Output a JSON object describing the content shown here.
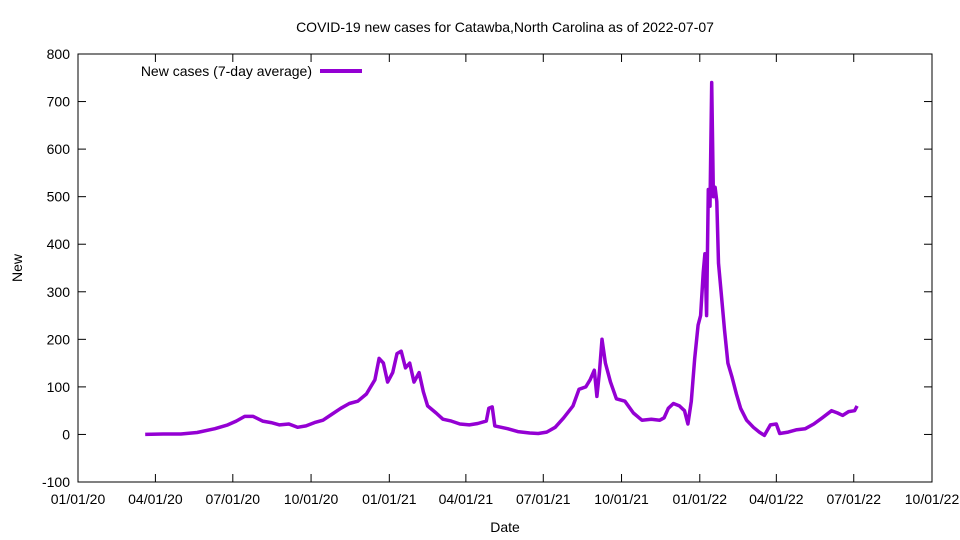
{
  "chart_data": {
    "type": "line",
    "title": "COVID-19 new cases for Catawba,North Carolina as of 2022-07-07",
    "xlabel": "Date",
    "ylabel": "New",
    "ylim": [
      -100,
      800
    ],
    "yticks": [
      -100,
      0,
      100,
      200,
      300,
      400,
      500,
      600,
      700,
      800
    ],
    "xlim": [
      "2020-01-01",
      "2022-10-01"
    ],
    "xticks": [
      {
        "date": "2020-01-01",
        "label": "01/01/20"
      },
      {
        "date": "2020-04-01",
        "label": "04/01/20"
      },
      {
        "date": "2020-07-01",
        "label": "07/01/20"
      },
      {
        "date": "2020-10-01",
        "label": "10/01/20"
      },
      {
        "date": "2021-01-01",
        "label": "01/01/21"
      },
      {
        "date": "2021-04-01",
        "label": "04/01/21"
      },
      {
        "date": "2021-07-01",
        "label": "07/01/21"
      },
      {
        "date": "2021-10-01",
        "label": "10/01/21"
      },
      {
        "date": "2022-01-01",
        "label": "01/01/22"
      },
      {
        "date": "2022-04-01",
        "label": "04/01/22"
      },
      {
        "date": "2022-07-01",
        "label": "07/01/22"
      },
      {
        "date": "2022-10-01",
        "label": "10/01/22"
      }
    ],
    "grid": false,
    "legend_position": "top-left",
    "series": [
      {
        "name": "New cases (7-day average)",
        "color": "#9400d3",
        "points": [
          [
            "2020-03-20",
            0
          ],
          [
            "2020-04-10",
            1
          ],
          [
            "2020-05-01",
            1
          ],
          [
            "2020-05-20",
            4
          ],
          [
            "2020-06-10",
            12
          ],
          [
            "2020-06-25",
            20
          ],
          [
            "2020-07-05",
            28
          ],
          [
            "2020-07-15",
            38
          ],
          [
            "2020-07-25",
            38
          ],
          [
            "2020-08-05",
            28
          ],
          [
            "2020-08-15",
            25
          ],
          [
            "2020-08-25",
            20
          ],
          [
            "2020-09-05",
            22
          ],
          [
            "2020-09-15",
            15
          ],
          [
            "2020-09-25",
            18
          ],
          [
            "2020-10-05",
            25
          ],
          [
            "2020-10-15",
            30
          ],
          [
            "2020-10-25",
            42
          ],
          [
            "2020-11-05",
            55
          ],
          [
            "2020-11-15",
            65
          ],
          [
            "2020-11-25",
            70
          ],
          [
            "2020-12-05",
            85
          ],
          [
            "2020-12-15",
            115
          ],
          [
            "2020-12-20",
            160
          ],
          [
            "2020-12-25",
            150
          ],
          [
            "2020-12-30",
            110
          ],
          [
            "2021-01-05",
            130
          ],
          [
            "2021-01-10",
            170
          ],
          [
            "2021-01-15",
            175
          ],
          [
            "2021-01-20",
            140
          ],
          [
            "2021-01-25",
            150
          ],
          [
            "2021-01-30",
            110
          ],
          [
            "2021-02-05",
            130
          ],
          [
            "2021-02-10",
            90
          ],
          [
            "2021-02-15",
            60
          ],
          [
            "2021-02-25",
            45
          ],
          [
            "2021-03-05",
            32
          ],
          [
            "2021-03-15",
            28
          ],
          [
            "2021-03-25",
            22
          ],
          [
            "2021-04-05",
            20
          ],
          [
            "2021-04-15",
            23
          ],
          [
            "2021-04-25",
            28
          ],
          [
            "2021-04-28",
            55
          ],
          [
            "2021-05-02",
            58
          ],
          [
            "2021-05-05",
            18
          ],
          [
            "2021-05-20",
            12
          ],
          [
            "2021-06-01",
            6
          ],
          [
            "2021-06-15",
            3
          ],
          [
            "2021-06-25",
            2
          ],
          [
            "2021-07-05",
            5
          ],
          [
            "2021-07-15",
            15
          ],
          [
            "2021-07-25",
            35
          ],
          [
            "2021-08-05",
            60
          ],
          [
            "2021-08-12",
            95
          ],
          [
            "2021-08-20",
            100
          ],
          [
            "2021-08-25",
            115
          ],
          [
            "2021-08-30",
            135
          ],
          [
            "2021-09-02",
            80
          ],
          [
            "2021-09-05",
            130
          ],
          [
            "2021-09-08",
            200
          ],
          [
            "2021-09-12",
            150
          ],
          [
            "2021-09-18",
            110
          ],
          [
            "2021-09-25",
            75
          ],
          [
            "2021-10-05",
            70
          ],
          [
            "2021-10-15",
            45
          ],
          [
            "2021-10-25",
            30
          ],
          [
            "2021-11-05",
            32
          ],
          [
            "2021-11-15",
            30
          ],
          [
            "2021-11-20",
            35
          ],
          [
            "2021-11-25",
            55
          ],
          [
            "2021-12-01",
            65
          ],
          [
            "2021-12-08",
            60
          ],
          [
            "2021-12-14",
            50
          ],
          [
            "2021-12-18",
            22
          ],
          [
            "2021-12-22",
            70
          ],
          [
            "2021-12-26",
            160
          ],
          [
            "2021-12-30",
            230
          ],
          [
            "2022-01-02",
            250
          ],
          [
            "2022-01-05",
            340
          ],
          [
            "2022-01-07",
            380
          ],
          [
            "2022-01-09",
            250
          ],
          [
            "2022-01-11",
            515
          ],
          [
            "2022-01-13",
            480
          ],
          [
            "2022-01-15",
            740
          ],
          [
            "2022-01-17",
            500
          ],
          [
            "2022-01-19",
            520
          ],
          [
            "2022-01-21",
            490
          ],
          [
            "2022-01-23",
            360
          ],
          [
            "2022-01-26",
            300
          ],
          [
            "2022-01-30",
            220
          ],
          [
            "2022-02-03",
            150
          ],
          [
            "2022-02-08",
            120
          ],
          [
            "2022-02-13",
            85
          ],
          [
            "2022-02-18",
            55
          ],
          [
            "2022-02-25",
            30
          ],
          [
            "2022-03-05",
            15
          ],
          [
            "2022-03-12",
            5
          ],
          [
            "2022-03-18",
            -2
          ],
          [
            "2022-03-25",
            20
          ],
          [
            "2022-04-01",
            22
          ],
          [
            "2022-04-05",
            2
          ],
          [
            "2022-04-15",
            5
          ],
          [
            "2022-04-25",
            10
          ],
          [
            "2022-05-05",
            12
          ],
          [
            "2022-05-15",
            22
          ],
          [
            "2022-05-25",
            35
          ],
          [
            "2022-06-05",
            50
          ],
          [
            "2022-06-12",
            45
          ],
          [
            "2022-06-18",
            40
          ],
          [
            "2022-06-25",
            48
          ],
          [
            "2022-07-02",
            50
          ],
          [
            "2022-07-05",
            60
          ]
        ]
      }
    ]
  }
}
